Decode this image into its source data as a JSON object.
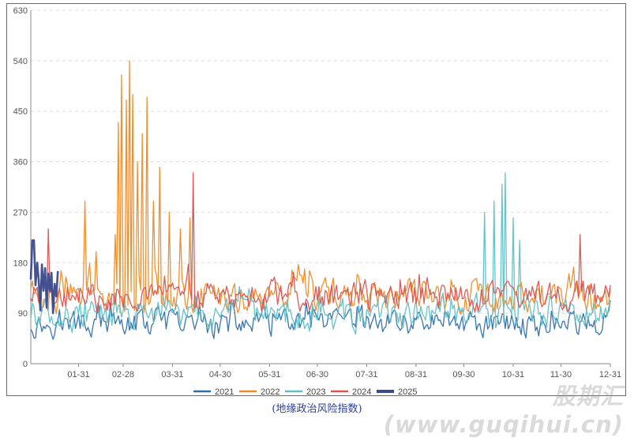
{
  "chart_data": {
    "type": "line",
    "title": "",
    "caption": "(地缘政治风险指数)",
    "xlabel": "",
    "ylabel": "",
    "ylim": [
      0,
      630
    ],
    "y_ticks": [
      0,
      90,
      180,
      270,
      360,
      450,
      540,
      630
    ],
    "x_ticks": [
      "01-31",
      "02-28",
      "03-31",
      "04-30",
      "05-31",
      "06-30",
      "07-31",
      "08-31",
      "09-30",
      "10-31",
      "11-30",
      "12-31"
    ],
    "x_tick_days": [
      31,
      59,
      90,
      120,
      151,
      181,
      212,
      243,
      273,
      304,
      334,
      365
    ],
    "x_range_days": [
      1,
      365
    ],
    "grid": "horizontal dashed",
    "legend_position": "bottom",
    "series": [
      {
        "name": "2021",
        "color": "#2f6fa6",
        "base": 70,
        "amp": 35,
        "spikes": []
      },
      {
        "name": "2022",
        "color": "#ee8b23",
        "base": 120,
        "amp": 45,
        "spikes": [
          [
            35,
            290
          ],
          [
            42,
            200
          ],
          [
            54,
            230
          ],
          [
            56,
            430
          ],
          [
            58,
            515
          ],
          [
            61,
            470
          ],
          [
            63,
            540
          ],
          [
            65,
            480
          ],
          [
            68,
            360
          ],
          [
            71,
            410
          ],
          [
            74,
            475
          ],
          [
            78,
            290
          ],
          [
            82,
            350
          ],
          [
            88,
            270
          ],
          [
            95,
            240
          ],
          [
            101,
            260
          ]
        ]
      },
      {
        "name": "2023",
        "color": "#5fbfc6",
        "base": 85,
        "amp": 40,
        "spikes": [
          [
            286,
            270
          ],
          [
            292,
            290
          ],
          [
            297,
            320
          ],
          [
            299,
            340
          ],
          [
            304,
            260
          ],
          [
            308,
            220
          ]
        ]
      },
      {
        "name": "2024",
        "color": "#d9534f",
        "base": 120,
        "amp": 40,
        "spikes": [
          [
            12,
            240
          ],
          [
            103,
            340
          ],
          [
            346,
            230
          ]
        ]
      },
      {
        "name": "2025",
        "color": "#3a4a8c",
        "base": 150,
        "amp": 30,
        "days": 18,
        "spikes": [
          [
            1,
            150
          ],
          [
            2,
            220
          ],
          [
            3,
            220
          ],
          [
            4,
            140
          ],
          [
            5,
            180
          ],
          [
            7,
            95
          ],
          [
            9,
            130
          ],
          [
            11,
            100
          ],
          [
            13,
            130
          ],
          [
            15,
            90
          ],
          [
            17,
            120
          ]
        ]
      }
    ]
  },
  "watermark": "股期汇(www.guqihui.cn)"
}
